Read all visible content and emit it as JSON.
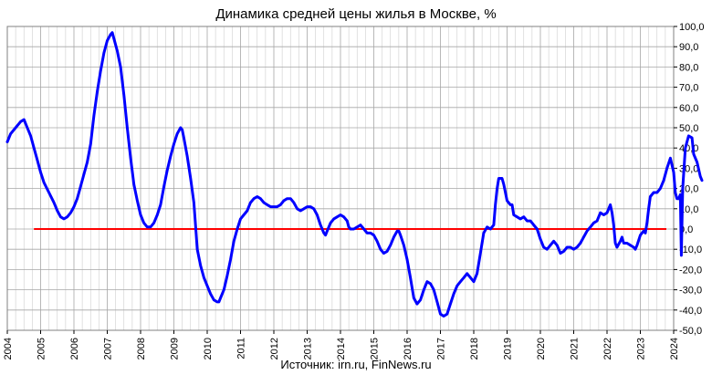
{
  "chart_data": {
    "type": "line",
    "title": "Динамика  средней цены жилья в Москве, %",
    "source": "Источник: irn.ru, FinNews.ru",
    "xlabel": "",
    "ylabel": "",
    "xlim": [
      2004,
      2024
    ],
    "ylim": [
      -50,
      100
    ],
    "x_ticks": [
      2004,
      2005,
      2006,
      2007,
      2008,
      2009,
      2010,
      2011,
      2012,
      2013,
      2014,
      2015,
      2016,
      2017,
      2018,
      2019,
      2020,
      2021,
      2022,
      2023,
      2024
    ],
    "x_tick_labels": [
      "2004",
      "2005",
      "2006",
      "2007",
      "2008",
      "2009",
      "2010",
      "2011",
      "2012",
      "2013",
      "2014",
      "2015",
      "2016",
      "2017",
      "2018",
      "2019",
      "2020",
      "2021",
      "2022",
      "2023",
      "2024"
    ],
    "y_ticks": [
      -50,
      -40,
      -30,
      -20,
      -10,
      0,
      10,
      20,
      30,
      40,
      50,
      60,
      70,
      80,
      90,
      100
    ],
    "y_tick_labels": [
      "-50,0",
      "-40,0",
      "-30,0",
      "-20,0",
      "-10,0",
      "0,0",
      "10,0",
      "20,0",
      "30,0",
      "40,0",
      "50,0",
      "60,0",
      "70,0",
      "80,0",
      "90,0",
      "100,0"
    ],
    "y_axis_position": "right",
    "grid": true,
    "legend": "none",
    "colors": {
      "series": "#0000ff",
      "zero_line": "#ff0000",
      "grid": "#a6a6a6",
      "plot_bg": "#ffffff"
    },
    "series": [
      {
        "values": [
          [
            2004.0,
            43
          ],
          [
            2004.1,
            47
          ],
          [
            2004.25,
            50
          ],
          [
            2004.4,
            53
          ],
          [
            2004.5,
            54
          ],
          [
            2004.6,
            50
          ],
          [
            2004.7,
            46
          ],
          [
            2004.8,
            40
          ],
          [
            2004.9,
            34
          ],
          [
            2005.0,
            28
          ],
          [
            2005.1,
            23
          ],
          [
            2005.25,
            18
          ],
          [
            2005.4,
            13
          ],
          [
            2005.5,
            9
          ],
          [
            2005.6,
            6
          ],
          [
            2005.7,
            5
          ],
          [
            2005.8,
            6
          ],
          [
            2005.9,
            8
          ],
          [
            2006.0,
            11
          ],
          [
            2006.1,
            15
          ],
          [
            2006.2,
            21
          ],
          [
            2006.3,
            27
          ],
          [
            2006.4,
            33
          ],
          [
            2006.5,
            42
          ],
          [
            2006.6,
            56
          ],
          [
            2006.7,
            68
          ],
          [
            2006.8,
            78
          ],
          [
            2006.9,
            87
          ],
          [
            2007.0,
            93
          ],
          [
            2007.1,
            96
          ],
          [
            2007.15,
            97
          ],
          [
            2007.2,
            94
          ],
          [
            2007.3,
            88
          ],
          [
            2007.4,
            80
          ],
          [
            2007.5,
            66
          ],
          [
            2007.6,
            50
          ],
          [
            2007.7,
            35
          ],
          [
            2007.8,
            22
          ],
          [
            2007.9,
            14
          ],
          [
            2008.0,
            7
          ],
          [
            2008.1,
            3
          ],
          [
            2008.2,
            1
          ],
          [
            2008.3,
            1
          ],
          [
            2008.4,
            3
          ],
          [
            2008.5,
            7
          ],
          [
            2008.6,
            12
          ],
          [
            2008.7,
            21
          ],
          [
            2008.8,
            29
          ],
          [
            2008.9,
            36
          ],
          [
            2009.0,
            42
          ],
          [
            2009.1,
            47
          ],
          [
            2009.2,
            50
          ],
          [
            2009.25,
            49
          ],
          [
            2009.3,
            45
          ],
          [
            2009.4,
            36
          ],
          [
            2009.5,
            25
          ],
          [
            2009.6,
            13
          ],
          [
            2009.65,
            2
          ],
          [
            2009.7,
            -10
          ],
          [
            2009.8,
            -18
          ],
          [
            2009.9,
            -24
          ],
          [
            2010.0,
            -28
          ],
          [
            2010.1,
            -32
          ],
          [
            2010.2,
            -35
          ],
          [
            2010.3,
            -36
          ],
          [
            2010.35,
            -36
          ],
          [
            2010.4,
            -34
          ],
          [
            2010.5,
            -30
          ],
          [
            2010.6,
            -23
          ],
          [
            2010.7,
            -15
          ],
          [
            2010.8,
            -6
          ],
          [
            2010.9,
            0
          ],
          [
            2011.0,
            5
          ],
          [
            2011.1,
            7
          ],
          [
            2011.2,
            9
          ],
          [
            2011.3,
            13
          ],
          [
            2011.4,
            15
          ],
          [
            2011.5,
            16
          ],
          [
            2011.6,
            15
          ],
          [
            2011.7,
            13
          ],
          [
            2011.8,
            12
          ],
          [
            2011.9,
            11
          ],
          [
            2012.0,
            11
          ],
          [
            2012.1,
            11
          ],
          [
            2012.2,
            12
          ],
          [
            2012.3,
            14
          ],
          [
            2012.4,
            15
          ],
          [
            2012.5,
            15
          ],
          [
            2012.6,
            13
          ],
          [
            2012.7,
            10
          ],
          [
            2012.8,
            9
          ],
          [
            2012.9,
            10
          ],
          [
            2013.0,
            11
          ],
          [
            2013.1,
            11
          ],
          [
            2013.2,
            10
          ],
          [
            2013.3,
            7
          ],
          [
            2013.4,
            2
          ],
          [
            2013.5,
            -2
          ],
          [
            2013.55,
            -3
          ],
          [
            2013.6,
            -1
          ],
          [
            2013.7,
            3
          ],
          [
            2013.8,
            5
          ],
          [
            2013.9,
            6
          ],
          [
            2014.0,
            7
          ],
          [
            2014.1,
            6
          ],
          [
            2014.2,
            4
          ],
          [
            2014.25,
            1
          ],
          [
            2014.3,
            0
          ],
          [
            2014.4,
            0
          ],
          [
            2014.5,
            1
          ],
          [
            2014.6,
            2
          ],
          [
            2014.7,
            0
          ],
          [
            2014.8,
            -2
          ],
          [
            2014.9,
            -2
          ],
          [
            2015.0,
            -3
          ],
          [
            2015.1,
            -6
          ],
          [
            2015.2,
            -10
          ],
          [
            2015.3,
            -12
          ],
          [
            2015.4,
            -11
          ],
          [
            2015.5,
            -8
          ],
          [
            2015.6,
            -4
          ],
          [
            2015.7,
            -1
          ],
          [
            2015.75,
            -1
          ],
          [
            2015.8,
            -3
          ],
          [
            2015.9,
            -8
          ],
          [
            2016.0,
            -15
          ],
          [
            2016.1,
            -24
          ],
          [
            2016.2,
            -34
          ],
          [
            2016.3,
            -37
          ],
          [
            2016.4,
            -35
          ],
          [
            2016.5,
            -30
          ],
          [
            2016.6,
            -26
          ],
          [
            2016.7,
            -27
          ],
          [
            2016.8,
            -30
          ],
          [
            2016.9,
            -36
          ],
          [
            2017.0,
            -42
          ],
          [
            2017.1,
            -43
          ],
          [
            2017.2,
            -42
          ],
          [
            2017.3,
            -37
          ],
          [
            2017.4,
            -32
          ],
          [
            2017.5,
            -28
          ],
          [
            2017.6,
            -26
          ],
          [
            2017.7,
            -24
          ],
          [
            2017.8,
            -22
          ],
          [
            2017.9,
            -24
          ],
          [
            2018.0,
            -26
          ],
          [
            2018.1,
            -22
          ],
          [
            2018.2,
            -12
          ],
          [
            2018.3,
            -2
          ],
          [
            2018.4,
            1
          ],
          [
            2018.5,
            0
          ],
          [
            2018.6,
            2
          ],
          [
            2018.65,
            12
          ],
          [
            2018.7,
            20
          ],
          [
            2018.75,
            25
          ],
          [
            2018.85,
            25
          ],
          [
            2018.9,
            22
          ],
          [
            2019.0,
            14
          ],
          [
            2019.1,
            12
          ],
          [
            2019.15,
            12
          ],
          [
            2019.2,
            7
          ],
          [
            2019.3,
            6
          ],
          [
            2019.4,
            5
          ],
          [
            2019.5,
            6
          ],
          [
            2019.6,
            4
          ],
          [
            2019.7,
            4
          ],
          [
            2019.8,
            2
          ],
          [
            2019.9,
            0
          ],
          [
            2020.0,
            -5
          ],
          [
            2020.1,
            -9
          ],
          [
            2020.2,
            -10
          ],
          [
            2020.3,
            -8
          ],
          [
            2020.35,
            -7
          ],
          [
            2020.4,
            -6
          ],
          [
            2020.5,
            -8
          ],
          [
            2020.6,
            -12
          ],
          [
            2020.7,
            -11
          ],
          [
            2020.8,
            -9
          ],
          [
            2020.9,
            -9
          ],
          [
            2021.0,
            -10
          ],
          [
            2021.1,
            -9
          ],
          [
            2021.2,
            -7
          ],
          [
            2021.3,
            -4
          ],
          [
            2021.4,
            -1
          ],
          [
            2021.5,
            1
          ],
          [
            2021.6,
            3
          ],
          [
            2021.7,
            4
          ],
          [
            2021.8,
            8
          ],
          [
            2021.9,
            7
          ],
          [
            2022.0,
            8
          ],
          [
            2022.1,
            12
          ],
          [
            2022.15,
            8
          ],
          [
            2022.2,
            2
          ],
          [
            2022.25,
            -7
          ],
          [
            2022.3,
            -9
          ],
          [
            2022.4,
            -6
          ],
          [
            2022.45,
            -4
          ],
          [
            2022.5,
            -7
          ],
          [
            2022.6,
            -7
          ],
          [
            2022.7,
            -8
          ],
          [
            2022.8,
            -9
          ],
          [
            2022.85,
            -10
          ],
          [
            2022.9,
            -8
          ],
          [
            2023.0,
            -3
          ],
          [
            2023.05,
            -2
          ],
          [
            2023.1,
            -1
          ],
          [
            2023.15,
            -2
          ],
          [
            2023.2,
            3
          ],
          [
            2023.25,
            10
          ],
          [
            2023.3,
            16
          ],
          [
            2023.4,
            18
          ],
          [
            2023.5,
            18
          ],
          [
            2023.6,
            20
          ],
          [
            2023.7,
            24
          ],
          [
            2023.8,
            30
          ],
          [
            2023.9,
            35
          ],
          [
            2024.0,
            28
          ],
          [
            2024.05,
            18
          ],
          [
            2024.1,
            15
          ],
          [
            2024.15,
            15
          ],
          [
            2024.2,
            17
          ],
          [
            2024.23,
            -13
          ],
          [
            2024.27,
            20
          ],
          [
            2024.35,
            40
          ],
          [
            2024.45,
            46
          ],
          [
            2024.55,
            45
          ],
          [
            2024.6,
            37
          ],
          [
            2024.7,
            33
          ],
          [
            2024.8,
            26
          ],
          [
            2024.85,
            24
          ]
        ]
      }
    ]
  }
}
